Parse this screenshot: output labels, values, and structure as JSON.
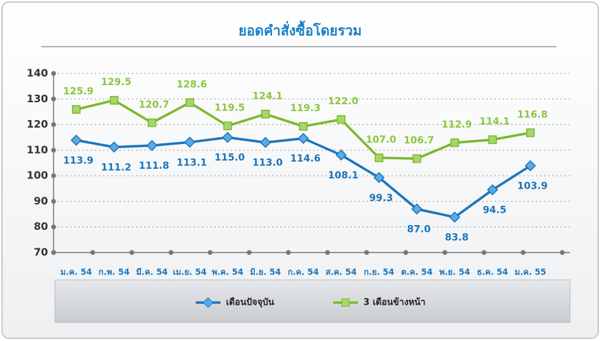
{
  "chart_data": {
    "type": "line",
    "title": "ยอดคำสั่งซื้อโดยรวม",
    "categories": [
      "ม.ค. 54",
      "ก.พ. 54",
      "มี.ค. 54",
      "เม.ย. 54",
      "พ.ค. 54",
      "มิ.ย. 54",
      "ก.ค. 54",
      "ส.ค. 54",
      "ก.ย. 54",
      "ต.ค. 54",
      "พ.ย. 54",
      "ธ.ค. 54",
      "ม.ค. 55"
    ],
    "series": [
      {
        "name": "เดือนปัจจุบัน",
        "color": "#1b75bb",
        "values": [
          113.9,
          111.2,
          111.8,
          113.1,
          115.0,
          113.0,
          114.6,
          108.1,
          99.3,
          87.0,
          83.8,
          94.5,
          103.9
        ],
        "value_labels": [
          "113.9",
          "111.2",
          "111.8",
          "113.1",
          "115.0",
          "113.0",
          "114.6",
          "108.1",
          "99.3",
          "87.0",
          "83.8",
          "94.5",
          "103.9"
        ]
      },
      {
        "name": "3 เดือนข้างหน้า",
        "color": "#7cb82f",
        "values": [
          125.9,
          129.5,
          120.7,
          128.6,
          119.5,
          124.1,
          119.3,
          122.0,
          107.0,
          106.7,
          112.9,
          114.1,
          116.8
        ],
        "value_labels": [
          "125.9",
          "129.5",
          "120.7",
          "128.6",
          "119.5",
          "124.1",
          "119.3",
          "122.0",
          "107.0",
          "106.7",
          "112.9",
          "114.1",
          "116.8"
        ]
      }
    ],
    "ylim": [
      70,
      140
    ],
    "yticks": [
      70,
      80,
      90,
      100,
      110,
      120,
      130,
      140
    ],
    "grid": true,
    "legend": "bottom"
  }
}
